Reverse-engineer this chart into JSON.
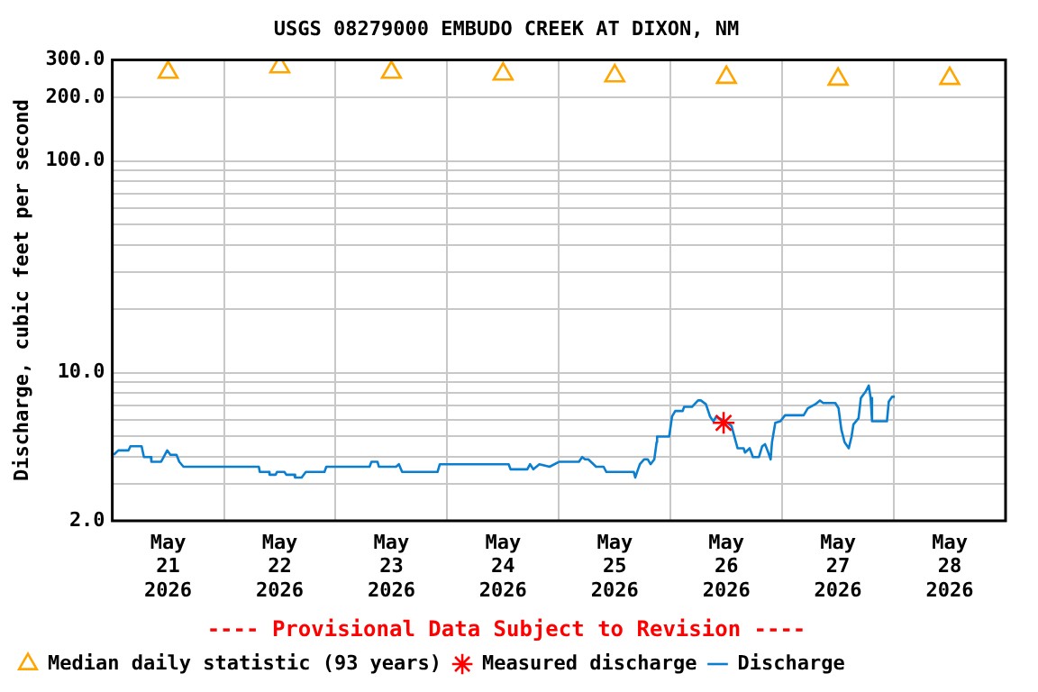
{
  "chart_data": {
    "type": "line",
    "title": "USGS 08279000 EMBUDO CREEK AT DIXON, NM",
    "ylabel": "Discharge, cubic feet per second",
    "annotations": [
      "---- Provisional Data Subject to Revision ----"
    ],
    "log": "y",
    "grid": true,
    "legend": "bottom left",
    "xlim": [
      "2026-05-21T00:00",
      "2026-05-29T00:00"
    ],
    "xticks": [
      {
        "value": "2026-05-21T00:00",
        "label": null
      },
      {
        "value": "2026-05-21T12:00",
        "label": "May\n21\n2026"
      },
      {
        "value": "2026-05-22T00:00",
        "label": null
      },
      {
        "value": "2026-05-22T12:00",
        "label": "May\n22\n2026"
      },
      {
        "value": "2026-05-23T00:00",
        "label": null
      },
      {
        "value": "2026-05-23T12:00",
        "label": "May\n23\n2026"
      },
      {
        "value": "2026-05-24T00:00",
        "label": null
      },
      {
        "value": "2026-05-24T12:00",
        "label": "May\n24\n2026"
      },
      {
        "value": "2026-05-25T00:00",
        "label": null
      },
      {
        "value": "2026-05-25T12:00",
        "label": "May\n25\n2026"
      },
      {
        "value": "2026-05-26T00:00",
        "label": null
      },
      {
        "value": "2026-05-26T12:00",
        "label": "May\n26\n2026"
      },
      {
        "value": "2026-05-27T00:00",
        "label": null
      },
      {
        "value": "2026-05-27T12:00",
        "label": "May\n27\n2026"
      },
      {
        "value": "2026-05-28T00:00",
        "label": null
      },
      {
        "value": "2026-05-28T12:00",
        "label": "May\n28\n2026"
      },
      {
        "value": "2026-05-29T00:00",
        "label": null
      }
    ],
    "ylim": [
      2,
      300
    ],
    "yticks": [
      {
        "value": 2,
        "label": "2.0"
      },
      {
        "value": 3,
        "label": null
      },
      {
        "value": 4,
        "label": null
      },
      {
        "value": 5,
        "label": null
      },
      {
        "value": 6,
        "label": null
      },
      {
        "value": 7,
        "label": null
      },
      {
        "value": 8,
        "label": null
      },
      {
        "value": 9,
        "label": null
      },
      {
        "value": 10,
        "label": "10.0"
      },
      {
        "value": 20,
        "label": null
      },
      {
        "value": 30,
        "label": null
      },
      {
        "value": 40,
        "label": null
      },
      {
        "value": 50,
        "label": null
      },
      {
        "value": 60,
        "label": null
      },
      {
        "value": 70,
        "label": null
      },
      {
        "value": 80,
        "label": null
      },
      {
        "value": 90,
        "label": null
      },
      {
        "value": 100,
        "label": "100.0"
      },
      {
        "value": 200,
        "label": "200.0"
      },
      {
        "value": 300,
        "label": "300.0"
      }
    ],
    "series": [
      {
        "name": "Median daily statistic (93 years)",
        "type": "scatter",
        "marker": "triangle",
        "color": "#ffa500",
        "x": [
          "2026-05-21T12:00",
          "2026-05-22T12:00",
          "2026-05-23T12:00",
          "2026-05-24T12:00",
          "2026-05-25T12:00",
          "2026-05-26T12:00",
          "2026-05-27T12:00",
          "2026-05-28T12:00"
        ],
        "values": [
          262,
          278,
          262,
          257,
          252,
          248,
          243,
          245
        ]
      },
      {
        "name": "Measured discharge",
        "type": "scatter",
        "marker": "cross",
        "color": "#ff0000",
        "x": [
          "2026-05-26T11:24"
        ],
        "values": [
          5.8
        ]
      },
      {
        "name": "Discharge",
        "type": "line",
        "marker": "none",
        "color": "#0a7fd0",
        "x": [
          "2026-05-21T00:18",
          "2026-05-21T01:18",
          "2026-05-21T03:30",
          "2026-05-21T03:54",
          "2026-05-21T06:18",
          "2026-05-21T06:48",
          "2026-05-21T08:18",
          "2026-05-21T08:24",
          "2026-05-21T10:30",
          "2026-05-21T11:48",
          "2026-05-21T12:30",
          "2026-05-21T13:48",
          "2026-05-21T14:24",
          "2026-05-21T15:18",
          "2026-05-22T07:30",
          "2026-05-22T07:42",
          "2026-05-22T09:42",
          "2026-05-22T09:48",
          "2026-05-22T11:06",
          "2026-05-22T11:24",
          "2026-05-22T13:00",
          "2026-05-22T13:24",
          "2026-05-22T15:06",
          "2026-05-22T15:18",
          "2026-05-22T16:42",
          "2026-05-22T17:36",
          "2026-05-22T21:36",
          "2026-05-22T22:00",
          "2026-05-23T07:18",
          "2026-05-23T07:42",
          "2026-05-23T09:00",
          "2026-05-23T09:18",
          "2026-05-23T13:00",
          "2026-05-23T13:36",
          "2026-05-23T14:18",
          "2026-05-23T21:54",
          "2026-05-23T22:24",
          "2026-05-24T13:12",
          "2026-05-24T13:36",
          "2026-05-24T17:12",
          "2026-05-24T17:48",
          "2026-05-24T18:30",
          "2026-05-24T19:48",
          "2026-05-24T22:00",
          "2026-05-25T00:06",
          "2026-05-25T04:18",
          "2026-05-25T05:00",
          "2026-05-25T05:36",
          "2026-05-25T06:18",
          "2026-05-25T08:00",
          "2026-05-25T09:36",
          "2026-05-25T10:12",
          "2026-05-25T16:06",
          "2026-05-25T16:24",
          "2026-05-25T16:48",
          "2026-05-25T17:24",
          "2026-05-25T18:18",
          "2026-05-25T19:06",
          "2026-05-25T19:42",
          "2026-05-25T20:30",
          "2026-05-25T21:00",
          "2026-05-25T21:06",
          "2026-05-25T23:42",
          "2026-05-26T00:18",
          "2026-05-26T01:00",
          "2026-05-26T02:36",
          "2026-05-26T02:54",
          "2026-05-26T04:36",
          "2026-05-26T05:54",
          "2026-05-26T06:30",
          "2026-05-26T07:36",
          "2026-05-26T08:30",
          "2026-05-26T09:12",
          "2026-05-26T09:48",
          "2026-05-26T11:48",
          "2026-05-26T13:06",
          "2026-05-26T14:24",
          "2026-05-26T15:42",
          "2026-05-26T16:00",
          "2026-05-26T17:00",
          "2026-05-26T17:42",
          "2026-05-26T19:00",
          "2026-05-26T19:42",
          "2026-05-26T20:18",
          "2026-05-26T21:00",
          "2026-05-26T21:30",
          "2026-05-26T21:48",
          "2026-05-26T22:30",
          "2026-05-26T23:36",
          "2026-05-27T00:36",
          "2026-05-27T04:36",
          "2026-05-27T05:30",
          "2026-05-27T07:06",
          "2026-05-27T08:06",
          "2026-05-27T08:48",
          "2026-05-27T11:24",
          "2026-05-27T12:06",
          "2026-05-27T12:42",
          "2026-05-27T13:24",
          "2026-05-27T14:18",
          "2026-05-27T14:54",
          "2026-05-27T15:18",
          "2026-05-27T16:24",
          "2026-05-27T16:54",
          "2026-05-27T18:00",
          "2026-05-27T18:36",
          "2026-05-27T19:00",
          "2026-05-27T19:18",
          "2026-05-27T22:30",
          "2026-05-27T22:54",
          "2026-05-27T23:36",
          "2026-05-28T00:12"
        ],
        "values": [
          4.1,
          4.3,
          4.3,
          4.5,
          4.5,
          4.0,
          4.0,
          3.8,
          3.8,
          4.3,
          4.1,
          4.1,
          3.8,
          3.6,
          3.6,
          3.4,
          3.4,
          3.3,
          3.3,
          3.4,
          3.4,
          3.3,
          3.3,
          3.2,
          3.2,
          3.4,
          3.4,
          3.6,
          3.6,
          3.8,
          3.8,
          3.6,
          3.6,
          3.7,
          3.4,
          3.4,
          3.7,
          3.7,
          3.5,
          3.5,
          3.7,
          3.5,
          3.7,
          3.6,
          3.8,
          3.8,
          4.0,
          3.9,
          3.9,
          3.6,
          3.6,
          3.4,
          3.4,
          3.2,
          3.4,
          3.7,
          3.9,
          3.9,
          3.7,
          3.9,
          4.7,
          5.0,
          5.0,
          6.2,
          6.6,
          6.6,
          6.9,
          6.9,
          7.4,
          7.4,
          7.1,
          6.2,
          5.9,
          6.2,
          5.9,
          5.6,
          4.4,
          4.4,
          4.2,
          4.4,
          4.0,
          4.0,
          4.5,
          4.6,
          4.2,
          3.9,
          4.7,
          5.8,
          5.9,
          6.3,
          6.3,
          6.8,
          7.1,
          7.4,
          7.2,
          7.2,
          6.8,
          5.4,
          4.7,
          4.4,
          5.0,
          5.7,
          6.1,
          7.6,
          8.2,
          8.7,
          7.6,
          5.9,
          5.9,
          7.3,
          7.7,
          7.7
        ]
      }
    ]
  }
}
